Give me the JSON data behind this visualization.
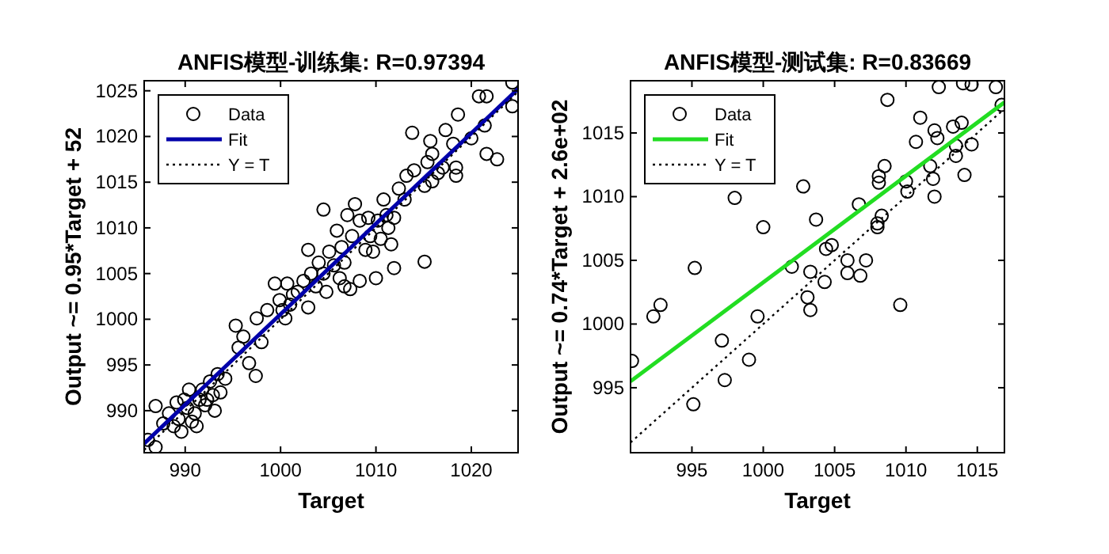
{
  "chart_data": [
    {
      "type": "scatter",
      "title": "ANFIS模型-训练集: R=0.97394",
      "xlabel": "Target",
      "ylabel": "Output ~= 0.95*Target + 52",
      "xlim": [
        985.7,
        1024.9
      ],
      "ylim": [
        985.4,
        1026.1
      ],
      "xticks": [
        990,
        1000,
        1010,
        1020
      ],
      "yticks": [
        990,
        995,
        1000,
        1005,
        1010,
        1015,
        1020,
        1025
      ],
      "grid": false,
      "legend": "top left",
      "series": [
        {
          "name": "Data",
          "marker": "circle",
          "color": "#000000",
          "x": [
            986.1,
            986.9,
            986.9,
            988.3,
            988.8,
            989.3,
            989.9,
            990.2,
            990.4,
            990.7,
            991.0,
            991.5,
            991.8,
            992.1,
            992.6,
            992.9,
            993.1,
            993.7,
            993.4,
            994.2,
            989.6,
            991.2,
            992.3,
            987.7,
            989.1,
            995.3,
            995.6,
            996.1,
            996.7,
            997.4,
            997.5,
            998.0,
            998.6,
            999.4,
            999.9,
            1000.2,
            1000.5,
            1000.7,
            1001.0,
            1001.3,
            1001.8,
            1002.4,
            1002.9,
            1003.2,
            1003.7,
            1004.5,
            1004.8,
            1005.1,
            1005.6,
            1005.9,
            1006.2,
            1006.4,
            1006.7,
            1006.7,
            1007.3,
            1007.0,
            1007.5,
            1007.8,
            1008.3,
            1008.3,
            1008.9,
            1009.2,
            1009.4,
            1009.7,
            1010.0,
            1010.2,
            1010.5,
            1010.8,
            1011.1,
            1011.3,
            1011.6,
            1011.9,
            1011.9,
            1004.5,
            1002.9,
            1004.0,
            1012.4,
            1013.0,
            1013.2,
            1014.0,
            1013.8,
            1015.1,
            1015.1,
            1015.4,
            1015.7,
            1015.9,
            1016.5,
            1017.0,
            1017.3,
            1018.1,
            1018.4,
            1018.6,
            1018.4,
            1020.0,
            1020.8,
            1021.6,
            1021.4,
            1021.6,
            1022.7,
            1024.3,
            1024.3,
            1015.9
          ],
          "values": [
            986.8,
            986.0,
            990.5,
            989.7,
            988.3,
            989.1,
            991.2,
            990.3,
            992.3,
            988.8,
            989.7,
            991.2,
            992.3,
            990.6,
            993.2,
            991.7,
            990.0,
            992.0,
            994.0,
            993.5,
            987.7,
            988.3,
            991.2,
            988.6,
            990.9,
            999.3,
            996.9,
            998.1,
            995.2,
            993.8,
            1000.1,
            997.5,
            1001.0,
            1003.9,
            1002.1,
            1001.0,
            1000.1,
            1003.9,
            1001.6,
            1002.7,
            1003.0,
            1004.2,
            1001.3,
            1005.0,
            1003.6,
            1005.0,
            1003.0,
            1007.4,
            1005.9,
            1009.7,
            1004.5,
            1007.9,
            1006.2,
            1003.6,
            1003.3,
            1011.4,
            1009.1,
            1012.6,
            1010.8,
            1004.2,
            1007.6,
            1011.1,
            1009.1,
            1007.4,
            1004.5,
            1010.8,
            1008.8,
            1013.1,
            1011.4,
            1010.0,
            1008.2,
            1005.6,
            1011.1,
            1012.0,
            1007.6,
            1006.2,
            1014.3,
            1013.1,
            1015.7,
            1016.3,
            1020.4,
            1014.6,
            1006.3,
            1017.2,
            1019.5,
            1018.1,
            1016.0,
            1016.6,
            1020.7,
            1019.2,
            1015.7,
            1022.4,
            1016.6,
            1019.8,
            1024.4,
            1024.4,
            1021.2,
            1018.1,
            1017.5,
            1025.9,
            1023.3,
            1015.1
          ]
        },
        {
          "name": "Fit",
          "type": "line",
          "marker": "none",
          "line_style": "solid",
          "color": "#0000aa",
          "x": [
            985.7,
            1024.9
          ],
          "values": [
            986.4,
            1025.2
          ]
        },
        {
          "name": "Y = T",
          "type": "line",
          "marker": "none",
          "line_style": "dotted",
          "color": "#000000",
          "x": [
            985.7,
            1024.9
          ],
          "values": [
            985.7,
            1024.9
          ]
        }
      ]
    },
    {
      "type": "scatter",
      "title": "ANFIS模型-测试集: R=0.83669",
      "xlabel": "Target",
      "ylabel": "Output ~= 0.74*Target + 2.6e+02",
      "xlim": [
        990.7,
        1016.9
      ],
      "ylim": [
        989.9,
        1019.1
      ],
      "xticks": [
        995,
        1000,
        1005,
        1010,
        1015
      ],
      "yticks": [
        995,
        1000,
        1005,
        1010,
        1015
      ],
      "grid": false,
      "legend": "top left",
      "series": [
        {
          "name": "Data",
          "marker": "circle",
          "color": "#000000",
          "x": [
            990.8,
            992.3,
            992.8,
            995.1,
            995.2,
            997.1,
            997.3,
            998.0,
            999.0,
            999.6,
            1000.0,
            1002.0,
            1002.8,
            1003.1,
            1003.3,
            1003.3,
            1003.7,
            1004.3,
            1004.4,
            1004.8,
            1005.9,
            1005.9,
            1006.8,
            1006.7,
            1007.2,
            1008.0,
            1008.0,
            1008.1,
            1008.1,
            1008.3,
            1008.5,
            1008.7,
            1009.6,
            1010.0,
            1010.1,
            1010.7,
            1011.0,
            1011.7,
            1011.9,
            1012.0,
            1012.0,
            1012.2,
            1012.3,
            1013.3,
            1013.5,
            1013.5,
            1013.9,
            1014.0,
            1014.1,
            1014.6,
            1014.6,
            1016.3,
            1016.7
          ],
          "values": [
            997.1,
            1000.6,
            1001.5,
            993.7,
            1004.4,
            998.7,
            995.6,
            1009.9,
            997.2,
            1000.6,
            1007.6,
            1004.5,
            1010.8,
            1002.1,
            1001.1,
            1004.1,
            1008.2,
            1003.3,
            1005.9,
            1006.2,
            1005.0,
            1004.0,
            1003.8,
            1009.4,
            1005.0,
            1007.9,
            1007.6,
            1011.6,
            1011.1,
            1008.5,
            1012.4,
            1017.6,
            1001.5,
            1011.2,
            1010.4,
            1014.3,
            1016.2,
            1012.4,
            1011.4,
            1015.2,
            1010.0,
            1014.6,
            1018.6,
            1015.5,
            1014.0,
            1013.2,
            1015.8,
            1018.9,
            1011.7,
            1014.1,
            1018.8,
            1018.6,
            1017.2
          ]
        },
        {
          "name": "Fit",
          "type": "line",
          "marker": "none",
          "line_style": "solid",
          "color": "#22dd22",
          "x": [
            990.7,
            1016.9
          ],
          "values": [
            995.5,
            1017.4
          ]
        },
        {
          "name": "Y = T",
          "type": "line",
          "marker": "none",
          "line_style": "dotted",
          "color": "#000000",
          "x": [
            990.7,
            1016.9
          ],
          "values": [
            990.7,
            1016.9
          ]
        }
      ]
    }
  ]
}
